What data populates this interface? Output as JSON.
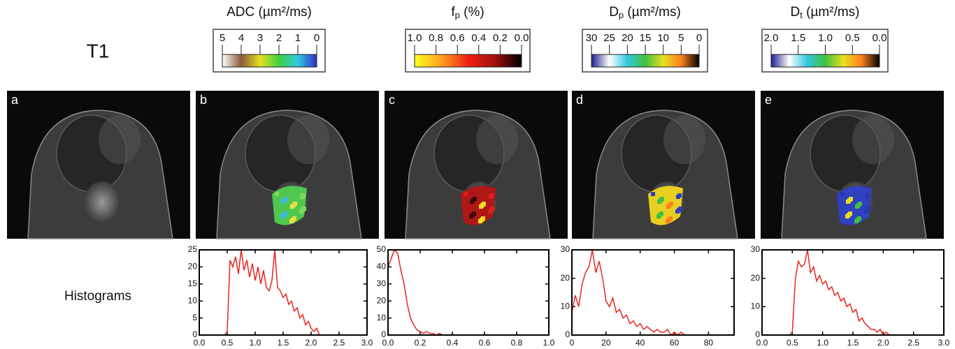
{
  "row_label": "T1",
  "histogram_label": "Histograms",
  "panels": [
    "a",
    "b",
    "c",
    "d",
    "e"
  ],
  "chart_data": [
    {
      "type": "line",
      "color": "#e8251f",
      "title_parts": [
        {
          "text": "ADC (µm²/ms)",
          "sub": false
        }
      ],
      "cbar_lim": [
        5,
        0
      ],
      "cbar_ticks": [
        5,
        4,
        3,
        2,
        1,
        0
      ],
      "cbar_colors": [
        "#ffffff",
        "#8a5a3c",
        "#e8e020",
        "#40d040",
        "#30c8e0",
        "#3030c0"
      ],
      "x": [
        0,
        0.05,
        0.1,
        0.15,
        0.2,
        0.25,
        0.3,
        0.35,
        0.4,
        0.45,
        0.5,
        0.55,
        0.6,
        0.65,
        0.7,
        0.75,
        0.8,
        0.85,
        0.9,
        0.95,
        1.0,
        1.05,
        1.1,
        1.15,
        1.2,
        1.25,
        1.3,
        1.35,
        1.4,
        1.45,
        1.5,
        1.55,
        1.6,
        1.65,
        1.7,
        1.75,
        1.8,
        1.85,
        1.9,
        1.95,
        2.0,
        2.05,
        2.1,
        2.15,
        2.2,
        2.25,
        2.3,
        2.35,
        2.4,
        2.45,
        2.5,
        2.55,
        2.6,
        2.65,
        2.7,
        2.75,
        2.8,
        2.85,
        2.9,
        2.95,
        3.0
      ],
      "values": [
        0,
        0,
        0,
        0,
        0,
        0,
        0,
        0,
        0,
        0,
        1,
        22,
        20,
        23,
        18,
        25,
        19,
        22,
        17,
        21,
        16,
        20,
        15,
        19,
        14,
        13,
        16,
        25,
        14,
        13,
        11,
        12,
        9,
        10,
        7,
        8,
        5,
        6,
        3,
        4,
        2,
        1,
        2,
        0,
        0,
        0,
        0,
        0,
        0,
        0,
        0,
        0,
        0,
        0,
        0,
        0,
        0,
        0,
        0,
        0,
        0
      ],
      "xlim": [
        0,
        3
      ],
      "ylim": [
        0,
        25
      ],
      "xticks": [
        {
          "value": 0,
          "label": "0.0"
        },
        {
          "value": 0.5,
          "label": "0.5"
        },
        {
          "value": 1,
          "label": "1.0"
        },
        {
          "value": 1.5,
          "label": "1.5"
        },
        {
          "value": 2,
          "label": "2.0"
        },
        {
          "value": 2.5,
          "label": "2.5"
        },
        {
          "value": 3,
          "label": "3.0"
        }
      ],
      "yticks": [
        0,
        5,
        10,
        15,
        20,
        25
      ]
    },
    {
      "type": "line",
      "color": "#e8251f",
      "title_parts": [
        {
          "text": "f",
          "sub": false
        },
        {
          "text": "p",
          "sub": true
        },
        {
          "text": " (%)",
          "sub": false
        }
      ],
      "cbar_lim": [
        1,
        0
      ],
      "cbar_ticks": [
        {
          "value": 1,
          "label": "1.0"
        },
        {
          "value": 0.8,
          "label": "0.8"
        },
        {
          "value": 0.6,
          "label": "0.6"
        },
        {
          "value": 0.4,
          "label": "0.4"
        },
        {
          "value": 0.2,
          "label": "0.2"
        },
        {
          "value": 0,
          "label": "0.0"
        }
      ],
      "cbar_colors": [
        "#ffff20",
        "#ffa020",
        "#f02010",
        "#a01010",
        "#000000"
      ],
      "x": [
        0,
        0.02,
        0.04,
        0.06,
        0.08,
        0.1,
        0.12,
        0.14,
        0.16,
        0.18,
        0.2,
        0.22,
        0.24,
        0.26,
        0.28,
        0.3,
        0.32,
        0.34,
        0.36,
        0.38,
        0.4,
        0.42,
        0.44,
        0.46,
        0.48,
        0.5,
        0.52,
        0.54,
        0.56,
        0.58,
        0.6,
        0.62,
        0.64,
        0.66,
        0.68,
        0.7,
        0.72,
        0.74,
        0.76,
        0.78,
        0.8,
        0.82,
        0.84,
        0.86,
        0.88,
        0.9,
        0.92,
        0.94,
        0.96,
        0.98,
        1.0
      ],
      "values": [
        40,
        45,
        50,
        48,
        38,
        30,
        18,
        10,
        6,
        3,
        2,
        1,
        2,
        1,
        1,
        0,
        1,
        0,
        0,
        0,
        0,
        0,
        0,
        0,
        0,
        0,
        0,
        0,
        0,
        0,
        0,
        0,
        0,
        0,
        0,
        0,
        0,
        0,
        0,
        0,
        0,
        0,
        0,
        0,
        0,
        0,
        0,
        0,
        0,
        0,
        0
      ],
      "xlim": [
        0,
        1
      ],
      "ylim": [
        0,
        50
      ],
      "xticks": [
        {
          "value": 0,
          "label": "0.0"
        },
        {
          "value": 0.2,
          "label": "0.2"
        },
        {
          "value": 0.4,
          "label": "0.4"
        },
        {
          "value": 0.6,
          "label": "0.6"
        },
        {
          "value": 0.8,
          "label": "0.8"
        },
        {
          "value": 1,
          "label": "1.0"
        }
      ],
      "yticks": [
        0,
        10,
        20,
        30,
        40,
        50
      ]
    },
    {
      "type": "line",
      "color": "#e8251f",
      "title_parts": [
        {
          "text": "D",
          "sub": false
        },
        {
          "text": "p",
          "sub": true
        },
        {
          "text": " (µm²/ms)",
          "sub": false
        }
      ],
      "cbar_lim": [
        30,
        0
      ],
      "cbar_ticks": [
        30,
        25,
        20,
        15,
        10,
        5,
        0
      ],
      "cbar_colors": [
        "#202090",
        "#ffffff",
        "#30c8e0",
        "#40c040",
        "#e8e020",
        "#ff8020",
        "#000000"
      ],
      "x": [
        0,
        2,
        4,
        6,
        8,
        10,
        12,
        14,
        16,
        18,
        20,
        22,
        24,
        26,
        28,
        30,
        32,
        34,
        36,
        38,
        40,
        42,
        44,
        46,
        48,
        50,
        52,
        54,
        56,
        58,
        60,
        62,
        64,
        66,
        68,
        70,
        72,
        74,
        76,
        78,
        80,
        82,
        84,
        86,
        88,
        90,
        92,
        94
      ],
      "values": [
        8,
        14,
        10,
        18,
        22,
        24,
        30,
        22,
        26,
        20,
        12,
        10,
        13,
        8,
        9,
        6,
        7,
        4,
        5,
        3,
        4,
        2,
        3,
        2,
        1,
        2,
        1,
        1,
        2,
        0,
        1,
        0,
        1,
        0,
        0,
        0,
        0,
        0,
        0,
        0,
        0,
        0,
        0,
        0,
        0,
        0,
        0,
        0
      ],
      "xlim": [
        0,
        95
      ],
      "ylim": [
        0,
        30
      ],
      "xticks": [
        0,
        20,
        40,
        60,
        80
      ],
      "yticks": [
        0,
        10,
        20,
        30
      ]
    },
    {
      "type": "line",
      "color": "#e8251f",
      "title_parts": [
        {
          "text": "D",
          "sub": false
        },
        {
          "text": "t",
          "sub": true
        },
        {
          "text": " (µm²/ms)",
          "sub": false
        }
      ],
      "cbar_lim": [
        2,
        0
      ],
      "cbar_ticks": [
        {
          "value": 2,
          "label": "2.0"
        },
        {
          "value": 1.5,
          "label": "1.5"
        },
        {
          "value": 1,
          "label": "1.0"
        },
        {
          "value": 0.5,
          "label": "0.5"
        },
        {
          "value": 0,
          "label": "0.0"
        }
      ],
      "cbar_colors": [
        "#202090",
        "#ffffff",
        "#30c8e0",
        "#40c040",
        "#e8e020",
        "#ff8020",
        "#000000"
      ],
      "x": [
        0,
        0.05,
        0.1,
        0.15,
        0.2,
        0.25,
        0.3,
        0.35,
        0.4,
        0.45,
        0.5,
        0.55,
        0.6,
        0.65,
        0.7,
        0.75,
        0.8,
        0.85,
        0.9,
        0.95,
        1.0,
        1.05,
        1.1,
        1.15,
        1.2,
        1.25,
        1.3,
        1.35,
        1.4,
        1.45,
        1.5,
        1.55,
        1.6,
        1.65,
        1.7,
        1.75,
        1.8,
        1.85,
        1.9,
        1.95,
        2.0,
        2.05,
        2.1,
        2.15,
        2.2,
        2.25,
        2.3,
        2.35,
        2.4,
        2.45,
        2.5,
        2.55,
        2.6,
        2.65,
        2.7,
        2.75,
        2.8,
        2.85,
        2.9,
        2.95,
        3.0
      ],
      "values": [
        0,
        0,
        0,
        0,
        0,
        0,
        0,
        0,
        0,
        0,
        1,
        20,
        26,
        24,
        25,
        30,
        22,
        24,
        19,
        21,
        18,
        19,
        16,
        17,
        14,
        15,
        12,
        13,
        10,
        11,
        8,
        9,
        5,
        6,
        4,
        3,
        2,
        2,
        1,
        2,
        0,
        1,
        0,
        0,
        0,
        0,
        0,
        0,
        0,
        0,
        0,
        0,
        0,
        0,
        0,
        0,
        0,
        0,
        0,
        0,
        0
      ],
      "xlim": [
        0,
        3
      ],
      "ylim": [
        0,
        30
      ],
      "xticks": [
        {
          "value": 0,
          "label": "0.0"
        },
        {
          "value": 0.5,
          "label": "0.5"
        },
        {
          "value": 1,
          "label": "1.0"
        },
        {
          "value": 1.5,
          "label": "1.5"
        },
        {
          "value": 2,
          "label": "2.0"
        },
        {
          "value": 2.5,
          "label": "2.5"
        },
        {
          "value": 3,
          "label": "3.0"
        }
      ],
      "yticks": [
        0,
        10,
        20,
        30
      ]
    }
  ]
}
